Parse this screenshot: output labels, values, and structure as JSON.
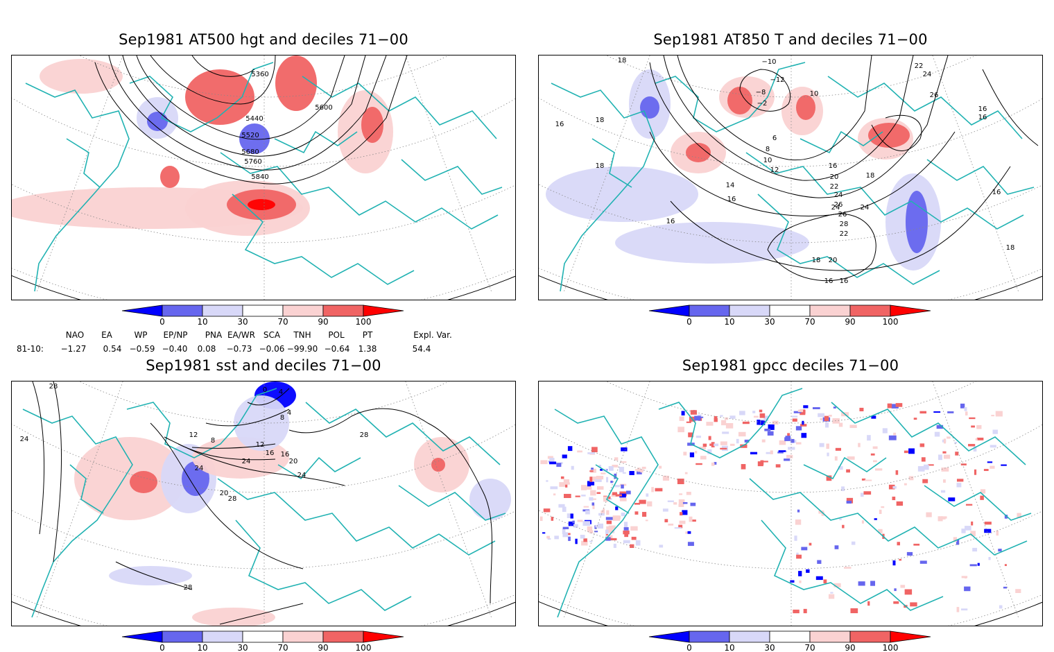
{
  "panels": [
    {
      "title": "Sep1981 AT500 hgt and deciles 71−00",
      "contour_labels": [
        "5360",
        "5440",
        "5600",
        "5520",
        "5680",
        "5760",
        "5840"
      ]
    },
    {
      "title": "Sep1981 AT850 T and deciles 71−00",
      "contour_labels": [
        "18",
        "16",
        "18",
        "18",
        "16",
        "−10",
        "−12",
        "−8",
        "−2",
        "10",
        "8",
        "6",
        "10",
        "12",
        "14",
        "16",
        "16",
        "18",
        "20",
        "22",
        "24",
        "26",
        "26",
        "28",
        "24",
        "22",
        "24",
        "20",
        "18",
        "16",
        "16",
        "18",
        "16",
        "22",
        "24",
        "26",
        "16",
        "16"
      ]
    },
    {
      "title": "Sep1981 sst and deciles 71−00",
      "contour_labels": [
        "28",
        "24",
        "0",
        "4",
        "4",
        "8",
        "12",
        "8",
        "12",
        "16",
        "16",
        "20",
        "24",
        "24",
        "24",
        "20",
        "28",
        "28",
        "28"
      ]
    },
    {
      "title": "Sep1981 gpcc deciles 71−00",
      "contour_labels": []
    }
  ],
  "colorbar": {
    "ticks": [
      "0",
      "10",
      "30",
      "70",
      "90",
      "100"
    ],
    "colors": [
      "#0000ff",
      "#6666ee",
      "#d8d8f8",
      "#ffffff",
      "#fad2d2",
      "#f06464",
      "#ff0000"
    ]
  },
  "indices": {
    "headers": [
      "NAO",
      "EA",
      "WP",
      "EP/NP",
      "PNA",
      "EA/WR",
      "SCA",
      "TNH",
      "POL",
      "PT",
      "Expl. Var."
    ],
    "row_label": "81-10:",
    "values": [
      "−1.27",
      "0.54",
      "−0.59",
      "−0.40",
      "0.08",
      "−0.73",
      "−0.06",
      "−99.90",
      "−0.64",
      "1.38",
      "54.4"
    ]
  },
  "colors": {
    "coast": "#20b2b2",
    "contour": "#000000",
    "grid": "#888888"
  }
}
